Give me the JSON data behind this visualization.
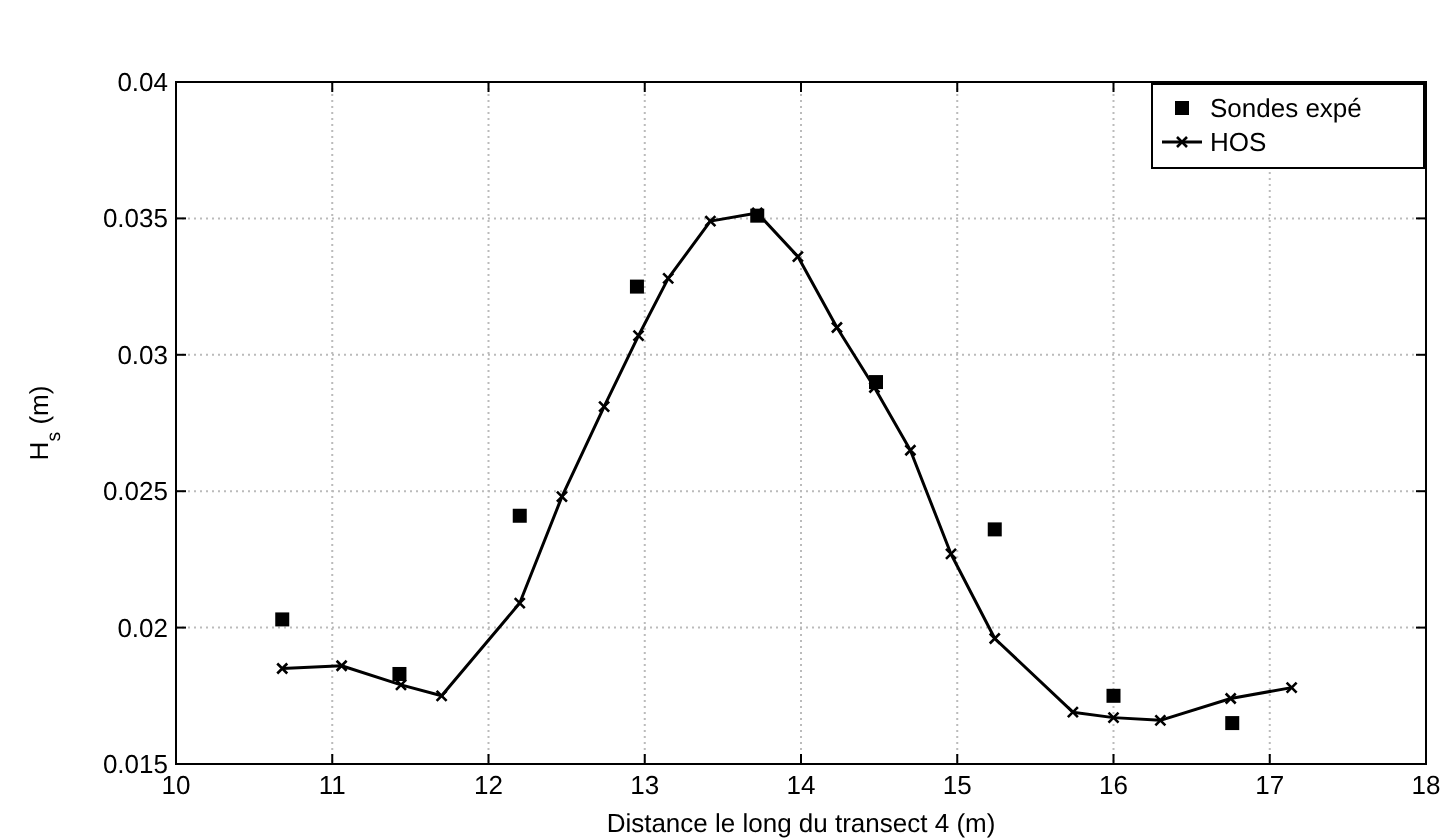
{
  "chart_data": {
    "type": "line",
    "xlabel": "Distance le long du transect 4 (m)",
    "ylabel": "H$_{s}$ (m)",
    "xlim": [
      10,
      18
    ],
    "xticks": [
      10,
      11,
      12,
      13,
      14,
      15,
      16,
      17,
      18
    ],
    "ylim": [
      0.015,
      0.04
    ],
    "yticks": [
      0.015,
      0.02,
      0.025,
      0.03,
      0.035,
      0.04
    ],
    "grid": true,
    "legend": "top right",
    "series": [
      {
        "name": "Sondes expé",
        "type": "scatter",
        "marker": "square",
        "color": "#000000",
        "x": [
          10.68,
          11.43,
          12.2,
          12.95,
          13.72,
          14.48,
          15.24,
          16.0,
          16.76
        ],
        "values": [
          0.0203,
          0.0183,
          0.0241,
          0.0325,
          0.0351,
          0.029,
          0.0236,
          0.0175,
          0.0165
        ]
      },
      {
        "name": "HOS",
        "type": "line",
        "marker": "cross",
        "line_style": "solid",
        "color": "#000000",
        "x": [
          10.68,
          11.06,
          11.44,
          11.7,
          12.2,
          12.47,
          12.74,
          12.96,
          13.15,
          13.42,
          13.72,
          13.98,
          14.23,
          14.47,
          14.7,
          14.96,
          15.24,
          15.74,
          16.0,
          16.3,
          16.75,
          17.14
        ],
        "values": [
          0.0185,
          0.0186,
          0.0179,
          0.0175,
          0.0209,
          0.0248,
          0.0281,
          0.0307,
          0.0328,
          0.0349,
          0.0352,
          0.0336,
          0.031,
          0.0288,
          0.0265,
          0.0227,
          0.0196,
          0.0169,
          0.0167,
          0.0166,
          0.0174,
          0.0178
        ]
      }
    ]
  }
}
